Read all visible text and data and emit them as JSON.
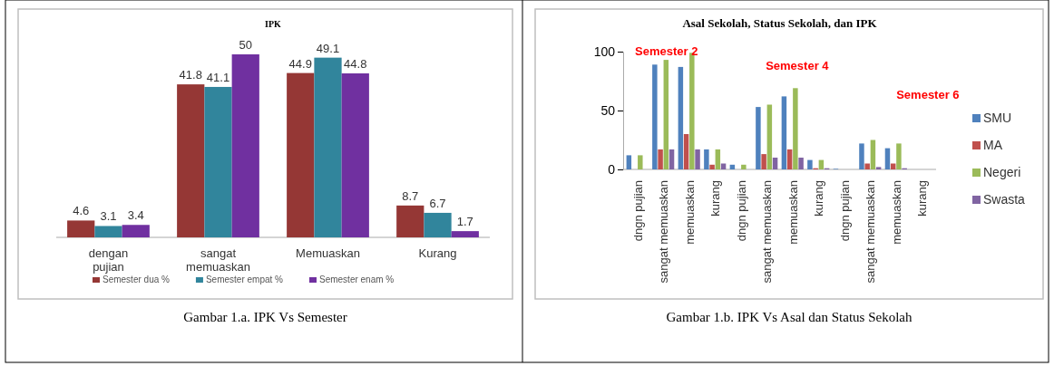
{
  "chart_data": [
    {
      "type": "bar",
      "title": "IPK",
      "categories": [
        "dengan pujian",
        "sangat memuaskan",
        "Memuaskan",
        "Kurang"
      ],
      "series": [
        {
          "name": "Semester dua %",
          "color": "#953735",
          "values": [
            4.6,
            41.8,
            44.9,
            8.7
          ]
        },
        {
          "name": "Semester empat %",
          "color": "#31859c",
          "values": [
            3.1,
            41.1,
            49.1,
            6.7
          ]
        },
        {
          "name": "Semester enam %",
          "color": "#7030a0",
          "values": [
            3.4,
            50,
            44.8,
            1.7
          ]
        }
      ],
      "data_labels": true,
      "legend": "bottom",
      "annotations": [
        "Gambar 1.a. IPK Vs Semester"
      ]
    },
    {
      "type": "bar",
      "title": "Asal Sekolah, Status Sekolah, dan IPK",
      "categories": [
        "dngn pujian",
        "sangat memuaskan",
        "memuaskan",
        "kurang",
        "dngn pujian",
        "sangat memuaskan",
        "memuaskan",
        "kurang",
        "dngn pujian",
        "sangat memuaskan",
        "memuaskan",
        "kurang"
      ],
      "series": [
        {
          "name": "SMU",
          "color": "#4f81bd",
          "values": [
            12,
            89,
            87,
            17,
            4,
            53,
            62,
            8,
            0.5,
            22,
            18,
            0
          ]
        },
        {
          "name": "MA",
          "color": "#c0504d",
          "values": [
            0,
            17,
            30,
            4,
            0,
            13,
            17,
            1,
            0,
            5,
            5,
            0
          ]
        },
        {
          "name": "Negeri",
          "color": "#9bbb59",
          "values": [
            12,
            93,
            99,
            17,
            4,
            55,
            69,
            8,
            0,
            25,
            22,
            0
          ]
        },
        {
          "name": "Swasta",
          "color": "#8064a2",
          "values": [
            0,
            17,
            17,
            5,
            0,
            10,
            10,
            1,
            0,
            2,
            1,
            0
          ]
        }
      ],
      "ylim": [
        0,
        100
      ],
      "yticks": [
        0,
        50,
        100
      ],
      "legend": "right",
      "annotations": [
        "Semester 2",
        "Semester 4",
        "Semester 6",
        "Gambar 1.b. IPK Vs Asal dan Status Sekolah"
      ]
    }
  ]
}
